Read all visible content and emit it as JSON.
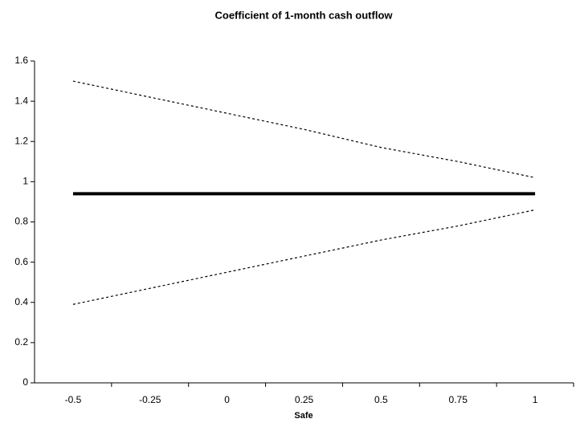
{
  "chart_data": {
    "type": "line",
    "title": "Coefficient of 1-month cash outflow",
    "x_label": "Safe",
    "categories": [
      "-0.5",
      "-0.25",
      "0",
      "0.25",
      "0.5",
      "0.75",
      "1"
    ],
    "series": [
      {
        "color": "#000000",
        "style": "solid",
        "width": 4,
        "values": [
          0.94,
          0.94,
          0.94,
          0.94,
          0.94,
          0.94,
          0.94
        ]
      },
      {
        "color": "#000000",
        "style": "dotted",
        "width": 1.2,
        "values": [
          1.5,
          1.42,
          1.34,
          1.26,
          1.17,
          1.1,
          1.02
        ]
      },
      {
        "color": "#000000",
        "style": "dotted",
        "width": 1.2,
        "values": [
          0.39,
          0.47,
          0.55,
          0.63,
          0.71,
          0.78,
          0.86
        ]
      }
    ],
    "ylim": [
      0,
      1.6
    ],
    "yticks": [
      0,
      0.2,
      0.4,
      0.6,
      0.8,
      1,
      1.2,
      1.4,
      1.6
    ],
    "grid": false
  }
}
